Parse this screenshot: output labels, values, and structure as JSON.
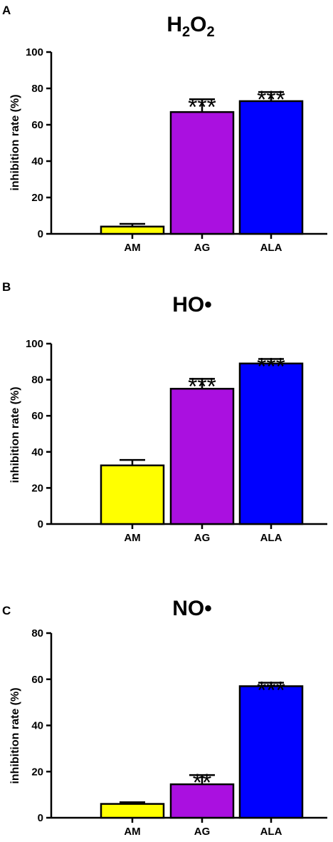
{
  "chart_data": [
    {
      "panel": "A",
      "type": "bar",
      "title_base": "H",
      "title_sub1": "2",
      "title_mid": "O",
      "title_sub2": "2",
      "ylabel": "inhibition rate (%)",
      "ylim": [
        0,
        100
      ],
      "yticks": [
        "0",
        "20",
        "40",
        "60",
        "80",
        "100"
      ],
      "categories": [
        "AM",
        "AG",
        "ALA"
      ],
      "values": [
        4,
        67,
        73
      ],
      "errors": [
        1.5,
        7,
        5
      ],
      "significance": [
        "",
        "***",
        "***"
      ],
      "colors": [
        "#ffff00",
        "#aa10e0",
        "#0000ff"
      ]
    },
    {
      "panel": "B",
      "type": "bar",
      "title": "HO•",
      "ylabel": "inhibition rate (%)",
      "ylim": [
        0,
        100
      ],
      "yticks": [
        "0",
        "20",
        "40",
        "60",
        "80",
        "100"
      ],
      "categories": [
        "AM",
        "AG",
        "ALA"
      ],
      "values": [
        32.5,
        75,
        89
      ],
      "errors": [
        3,
        5.5,
        2.5
      ],
      "significance": [
        "",
        "***",
        "***"
      ],
      "colors": [
        "#ffff00",
        "#aa10e0",
        "#0000ff"
      ]
    },
    {
      "panel": "C",
      "type": "bar",
      "title": "NO•",
      "ylabel": "inhibition rate (%)",
      "ylim": [
        0,
        80
      ],
      "yticks": [
        "0",
        "20",
        "40",
        "60",
        "80"
      ],
      "categories": [
        "AM",
        "AG",
        "ALA"
      ],
      "values": [
        6,
        14.5,
        57
      ],
      "errors": [
        0.7,
        4,
        1.5
      ],
      "significance": [
        "",
        "**",
        "***"
      ],
      "colors": [
        "#ffff00",
        "#aa10e0",
        "#0000ff"
      ]
    }
  ]
}
